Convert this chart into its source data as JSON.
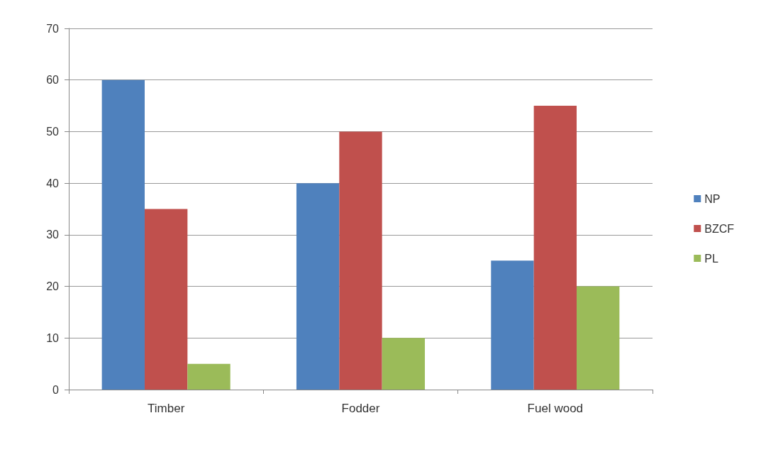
{
  "chart_data": {
    "type": "bar",
    "categories": [
      "Timber",
      "Fodder",
      "Fuel wood"
    ],
    "series": [
      {
        "name": "NP",
        "color": "#4f81bd",
        "values": [
          60,
          40,
          25
        ]
      },
      {
        "name": "BZCF",
        "color": "#c0504d",
        "values": [
          35,
          50,
          55
        ]
      },
      {
        "name": "PL",
        "color": "#9bbb59",
        "values": [
          5,
          10,
          20
        ]
      }
    ],
    "ylim": [
      0,
      70
    ],
    "yticks": [
      0,
      10,
      20,
      30,
      40,
      50,
      60,
      70
    ],
    "grid": "y",
    "legend": "right"
  }
}
